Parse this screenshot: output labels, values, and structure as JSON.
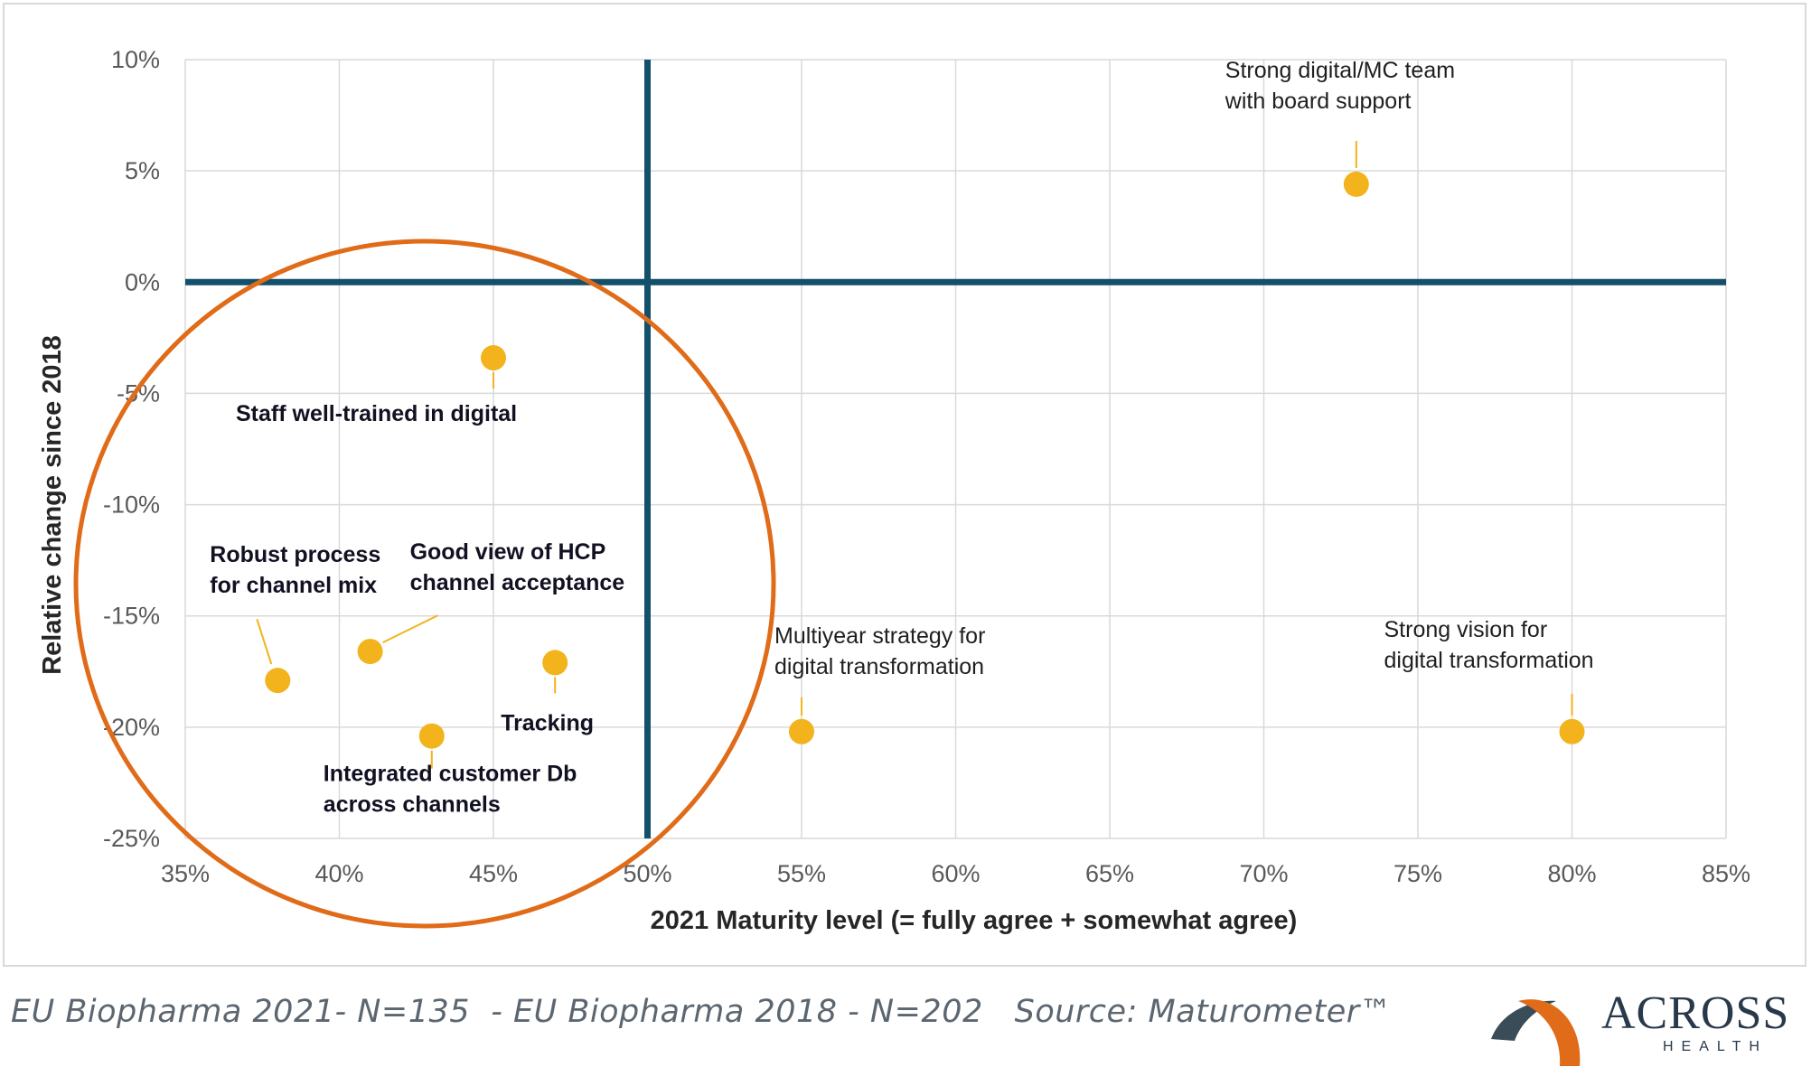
{
  "chart_data": {
    "type": "scatter",
    "xlabel": "2021 Maturity level (= fully agree + somewhat agree)",
    "ylabel": "Relative change since 2018",
    "xlim": [
      35,
      85
    ],
    "ylim": [
      -25,
      10
    ],
    "x_ticks": [
      35,
      40,
      45,
      50,
      55,
      60,
      65,
      70,
      75,
      80,
      85
    ],
    "x_tick_labels": [
      "35%",
      "40%",
      "45%",
      "50%",
      "55%",
      "60%",
      "65%",
      "70%",
      "75%",
      "80%",
      "85%"
    ],
    "y_ticks": [
      10,
      5,
      0,
      -5,
      -10,
      -15,
      -20,
      -25
    ],
    "y_tick_labels": [
      "10%",
      "5%",
      "0%",
      "-5%",
      "-10%",
      "-15%",
      "-20%",
      "-25%"
    ],
    "grid": true,
    "reference_lines": {
      "x": 50,
      "y": 0
    },
    "points": [
      {
        "label": [
          "Strong digital/MC team",
          "with board support"
        ],
        "x": 73,
        "y": 4.4,
        "bold": false
      },
      {
        "label": [
          "Staff well-trained in digital"
        ],
        "x": 45,
        "y": -3.4,
        "bold": true
      },
      {
        "label": [
          "Robust process",
          "for channel mix"
        ],
        "x": 38,
        "y": -17.9,
        "bold": true
      },
      {
        "label": [
          "Good view of HCP",
          "channel acceptance"
        ],
        "x": 41,
        "y": -16.6,
        "bold": true
      },
      {
        "label": [
          "Integrated customer Db",
          "across channels"
        ],
        "x": 43,
        "y": -20.4,
        "bold": true
      },
      {
        "label": [
          "Tracking"
        ],
        "x": 47,
        "y": -17.1,
        "bold": true
      },
      {
        "label": [
          "Multiyear strategy for",
          "digital transformation"
        ],
        "x": 55,
        "y": -20.2,
        "bold": false
      },
      {
        "label": [
          "Strong vision for",
          "digital transformation"
        ],
        "x": 80,
        "y": -20.2,
        "bold": false
      }
    ],
    "colors": {
      "point": "#f2b31c",
      "reference_line": "#12506b",
      "circle": "#e06b18",
      "grid": "#d9d9d9",
      "tick_text": "#595959",
      "title_text": "#262626"
    }
  },
  "footer": {
    "source_note": "EU Biopharma 2021- N=135  - EU Biopharma 2018 - N=202   Source: Maturometer™"
  },
  "logo": {
    "word": "ACROSS",
    "sub": "HEALTH",
    "colors": {
      "orange": "#e06b18",
      "dark": "#3b4c59"
    }
  }
}
